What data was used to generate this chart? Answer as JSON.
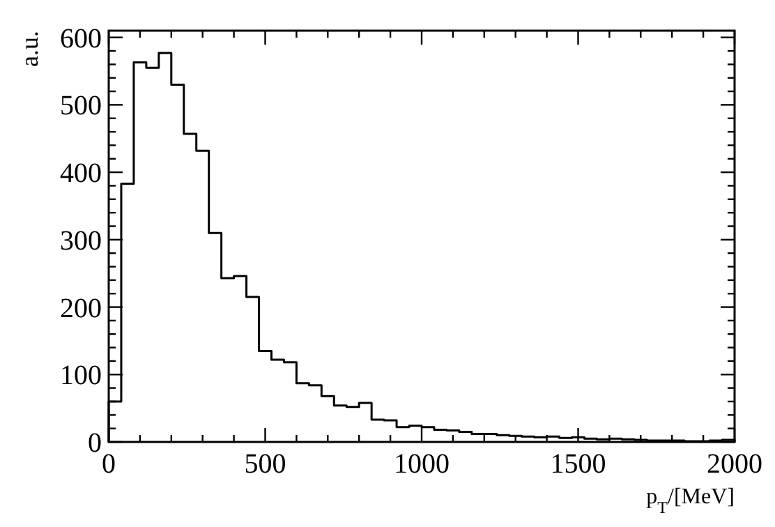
{
  "chart_data": {
    "type": "histogram",
    "xlabel": "p$_{T}$/[MeV]",
    "ylabel": "a.u.",
    "bins": [
      0,
      40,
      80,
      120,
      160,
      200,
      240,
      280,
      320,
      360,
      400,
      440,
      480,
      520,
      560,
      600,
      640,
      680,
      720,
      760,
      800,
      840,
      880,
      920,
      960,
      1000,
      1040,
      1080,
      1120,
      1160,
      1200,
      1240,
      1280,
      1320,
      1360,
      1400,
      1440,
      1480,
      1520,
      1560,
      1600,
      1640,
      1680,
      1720,
      1760,
      1800,
      1840,
      1880,
      1920,
      1960,
      2000
    ],
    "values": [
      60,
      383,
      563,
      555,
      577,
      530,
      457,
      432,
      310,
      243,
      246,
      215,
      135,
      122,
      118,
      87,
      84,
      68,
      54,
      52,
      58,
      33,
      32,
      22,
      24,
      22,
      18,
      17,
      15,
      12,
      12,
      10,
      9,
      8,
      7,
      8,
      6,
      7,
      5,
      4,
      5,
      4,
      3,
      2,
      2,
      2,
      1,
      1,
      2,
      3
    ],
    "color": "#000000",
    "xlim": [
      0,
      2000
    ],
    "xticks": [
      0,
      500,
      1000,
      1500,
      2000
    ],
    "ylim": [
      0,
      610
    ],
    "yticks": [
      0,
      100,
      200,
      300,
      400,
      500,
      600
    ],
    "grid": false
  }
}
